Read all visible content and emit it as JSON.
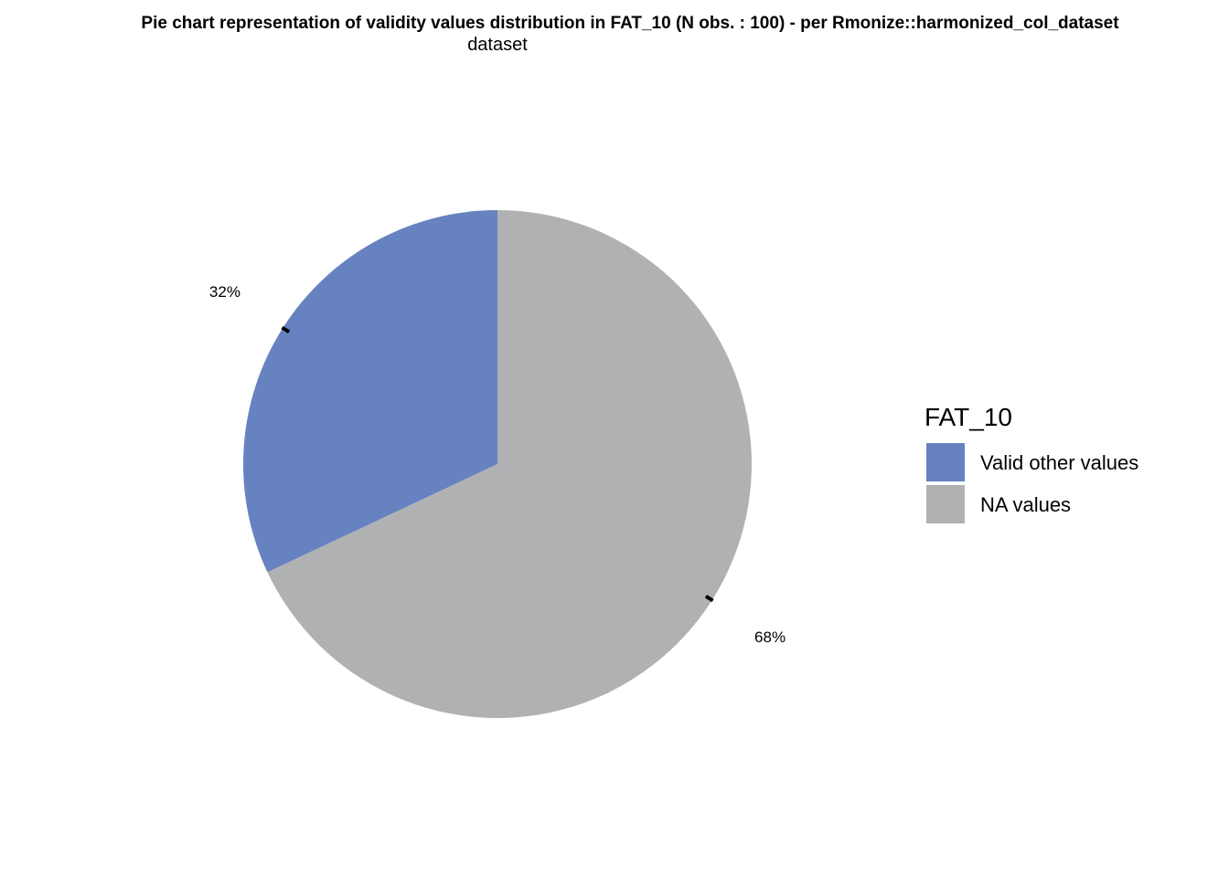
{
  "chart_data": {
    "type": "pie",
    "title": "Pie chart representation of validity values distribution in FAT_10 (N obs. : 100) - per Rmonize::harmonized_col_dataset",
    "subtitle": "dataset",
    "legend": {
      "title": "FAT_10",
      "placement": "right"
    },
    "slices": [
      {
        "label": "Valid other values",
        "value": 32,
        "percent_label": "32%",
        "color": "#6782C1"
      },
      {
        "label": "NA values",
        "value": 68,
        "percent_label": "68%",
        "color": "#B0B1B3"
      }
    ]
  }
}
